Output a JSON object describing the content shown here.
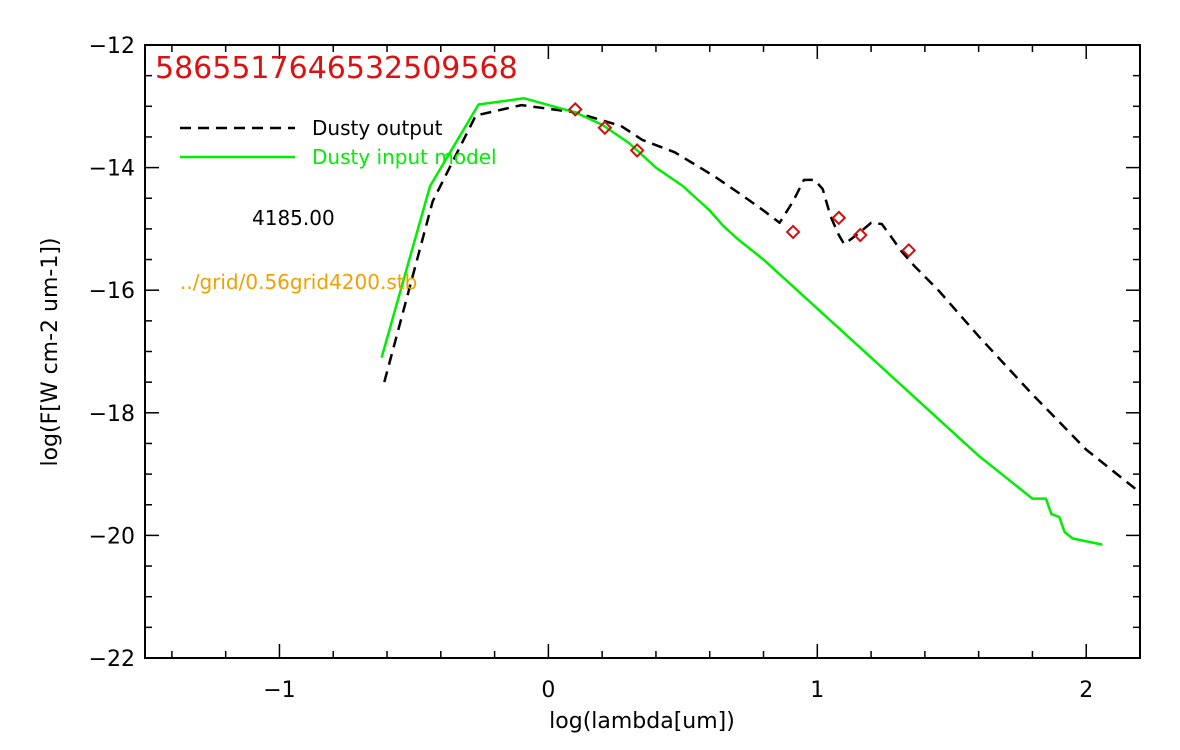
{
  "chart_data": {
    "type": "line",
    "title": "",
    "xlabel": "log(lambda[um])",
    "ylabel": "log(F[W cm-2 um-1])",
    "xlim": [
      -1.5,
      2.2
    ],
    "ylim": [
      -22,
      -12
    ],
    "x_ticks": [
      -1,
      0,
      1,
      2
    ],
    "x_tick_labels": [
      "−1",
      "0",
      "1",
      "2"
    ],
    "y_ticks": [
      -22,
      -20,
      -18,
      -16,
      -14,
      -12
    ],
    "y_tick_labels": [
      "−22",
      "−20",
      "−18",
      "−16",
      "−14",
      "−12"
    ],
    "grid": false,
    "legend_position": "top-left",
    "series": [
      {
        "name": "Dusty output",
        "style": "dashed",
        "color": "#000000",
        "x": [
          -0.61,
          -0.43,
          -0.27,
          -0.1,
          0.1,
          0.27,
          0.35,
          0.47,
          0.62,
          0.72,
          0.8,
          0.86,
          0.91,
          0.95,
          0.99,
          1.02,
          1.05,
          1.08,
          1.1,
          1.13,
          1.16,
          1.2,
          1.24,
          1.27,
          1.31,
          1.36,
          1.45,
          1.6,
          1.8,
          2.0,
          2.2
        ],
        "y": [
          -17.5,
          -14.55,
          -13.15,
          -12.98,
          -13.1,
          -13.32,
          -13.55,
          -13.75,
          -14.15,
          -14.45,
          -14.7,
          -14.9,
          -14.55,
          -14.2,
          -14.2,
          -14.35,
          -14.8,
          -15.1,
          -15.25,
          -15.15,
          -15.05,
          -14.9,
          -14.92,
          -15.1,
          -15.35,
          -15.6,
          -16.0,
          -16.75,
          -17.7,
          -18.6,
          -19.3
        ]
      },
      {
        "name": "Dusty input model",
        "style": "solid",
        "color": "#00ee00",
        "x": [
          -0.62,
          -0.44,
          -0.26,
          -0.09,
          0.1,
          0.2,
          0.3,
          0.4,
          0.5,
          0.6,
          0.65,
          0.7,
          0.8,
          1.0,
          1.2,
          1.4,
          1.6,
          1.8,
          1.85,
          1.87,
          1.9,
          1.92,
          1.95,
          2.06
        ],
        "y": [
          -17.1,
          -14.3,
          -12.97,
          -12.87,
          -13.1,
          -13.3,
          -13.6,
          -14.0,
          -14.3,
          -14.7,
          -14.95,
          -15.15,
          -15.5,
          -16.3,
          -17.1,
          -17.9,
          -18.7,
          -19.4,
          -19.4,
          -19.65,
          -19.7,
          -19.95,
          -20.05,
          -20.15
        ]
      },
      {
        "name": "",
        "style": "markers",
        "marker": "diamond",
        "color": "#d01010",
        "x": [
          0.1,
          0.21,
          0.33,
          0.91,
          1.08,
          1.16,
          1.34
        ],
        "y": [
          -13.05,
          -13.35,
          -13.72,
          -15.05,
          -14.82,
          -15.1,
          -15.35
        ]
      }
    ],
    "annotations": {
      "id_text": "5865517646532509568",
      "id_color": "#dd1111",
      "legend_dashed": "Dusty output",
      "legend_solid": "Dusty input model",
      "temperature": "4185.00",
      "grid_file": "../grid/0.56grid4200.stb",
      "grid_file_color": "#f0a000"
    }
  }
}
